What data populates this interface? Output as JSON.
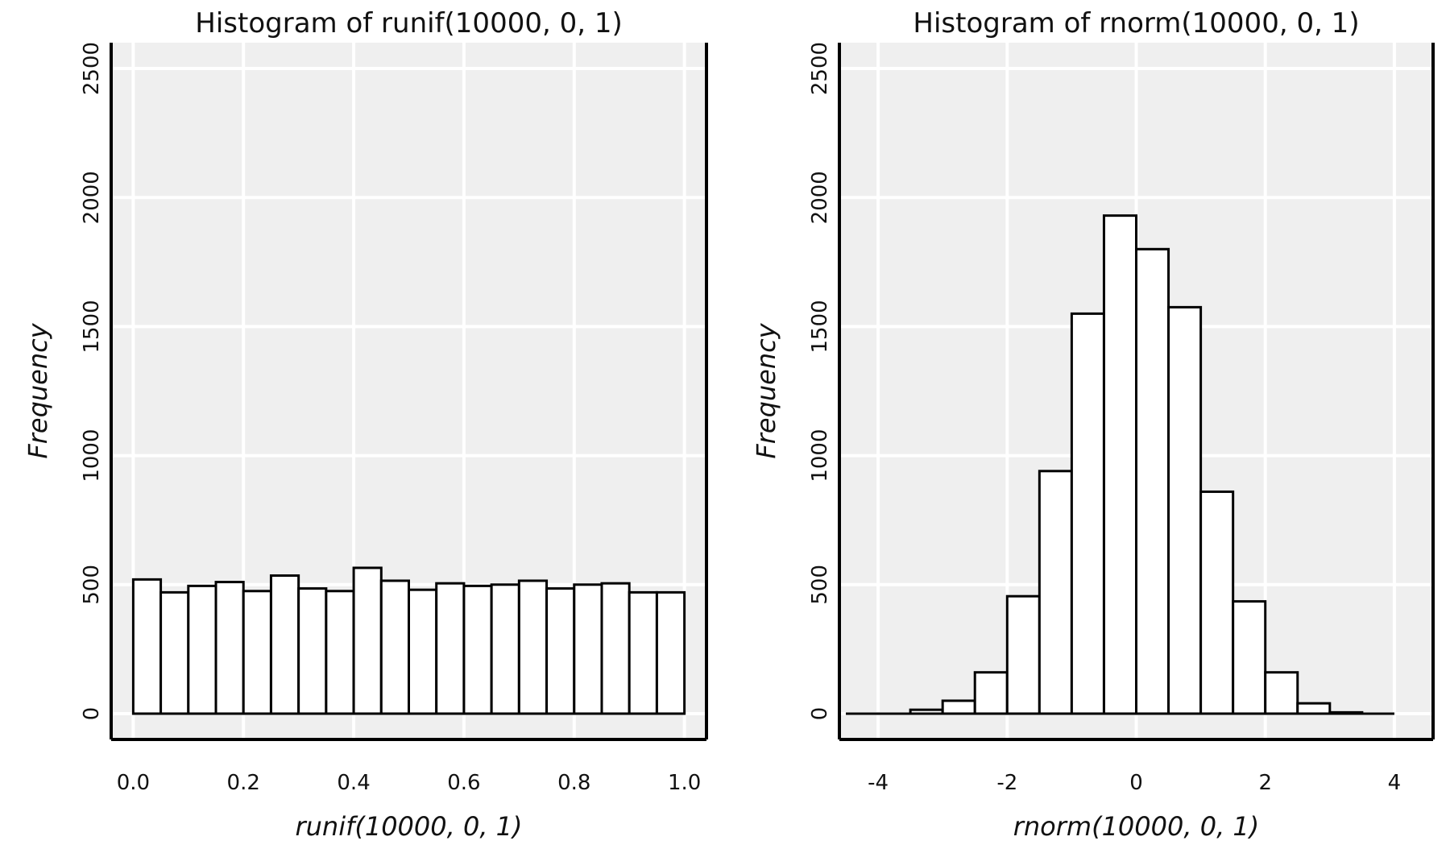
{
  "chart_data": [
    {
      "type": "bar",
      "title": "Histogram of runif(10000, 0, 1)",
      "xlabel": "runif(10000, 0, 1)",
      "ylabel": "Frequency",
      "xlim": [
        -0.04,
        1.04
      ],
      "ylim": [
        -100,
        2600
      ],
      "x_ticks": [
        {
          "value": 0.0,
          "label": "0.0"
        },
        {
          "value": 0.2,
          "label": "0.2"
        },
        {
          "value": 0.4,
          "label": "0.4"
        },
        {
          "value": 0.6,
          "label": "0.6"
        },
        {
          "value": 0.8,
          "label": "0.8"
        },
        {
          "value": 1.0,
          "label": "1.0"
        }
      ],
      "y_ticks": [
        {
          "value": 0,
          "label": "0"
        },
        {
          "value": 500,
          "label": "500"
        },
        {
          "value": 1000,
          "label": "1000"
        },
        {
          "value": 1500,
          "label": "1500"
        },
        {
          "value": 2000,
          "label": "2000"
        },
        {
          "value": 2500,
          "label": "2500"
        }
      ],
      "grid_x": [
        0.0,
        0.2,
        0.4,
        0.6,
        0.8,
        1.0
      ],
      "grid_y": [
        0,
        500,
        1000,
        1500,
        2000,
        2500
      ],
      "grid": true,
      "bins": [
        {
          "x0": 0.0,
          "x1": 0.05,
          "count": 520
        },
        {
          "x0": 0.05,
          "x1": 0.1,
          "count": 470
        },
        {
          "x0": 0.1,
          "x1": 0.15,
          "count": 495
        },
        {
          "x0": 0.15,
          "x1": 0.2,
          "count": 510
        },
        {
          "x0": 0.2,
          "x1": 0.25,
          "count": 475
        },
        {
          "x0": 0.25,
          "x1": 0.3,
          "count": 535
        },
        {
          "x0": 0.3,
          "x1": 0.35,
          "count": 485
        },
        {
          "x0": 0.35,
          "x1": 0.4,
          "count": 475
        },
        {
          "x0": 0.4,
          "x1": 0.45,
          "count": 565
        },
        {
          "x0": 0.45,
          "x1": 0.5,
          "count": 515
        },
        {
          "x0": 0.5,
          "x1": 0.55,
          "count": 480
        },
        {
          "x0": 0.55,
          "x1": 0.6,
          "count": 505
        },
        {
          "x0": 0.6,
          "x1": 0.65,
          "count": 495
        },
        {
          "x0": 0.65,
          "x1": 0.7,
          "count": 500
        },
        {
          "x0": 0.7,
          "x1": 0.75,
          "count": 515
        },
        {
          "x0": 0.75,
          "x1": 0.8,
          "count": 485
        },
        {
          "x0": 0.8,
          "x1": 0.85,
          "count": 500
        },
        {
          "x0": 0.85,
          "x1": 0.9,
          "count": 505
        },
        {
          "x0": 0.9,
          "x1": 0.95,
          "count": 470
        },
        {
          "x0": 0.95,
          "x1": 1.0,
          "count": 470
        }
      ]
    },
    {
      "type": "bar",
      "title": "Histogram of rnorm(10000, 0, 1)",
      "xlabel": "rnorm(10000, 0, 1)",
      "ylabel": "Frequency",
      "xlim": [
        -4.6,
        4.6
      ],
      "ylim": [
        -100,
        2600
      ],
      "x_ticks": [
        {
          "value": -4,
          "label": "-4"
        },
        {
          "value": -2,
          "label": "-2"
        },
        {
          "value": 0,
          "label": "0"
        },
        {
          "value": 2,
          "label": "2"
        },
        {
          "value": 4,
          "label": "4"
        }
      ],
      "y_ticks": [
        {
          "value": 0,
          "label": "0"
        },
        {
          "value": 500,
          "label": "500"
        },
        {
          "value": 1000,
          "label": "1000"
        },
        {
          "value": 1500,
          "label": "1500"
        },
        {
          "value": 2000,
          "label": "2000"
        },
        {
          "value": 2500,
          "label": "2500"
        }
      ],
      "grid_x": [
        -4,
        -2,
        0,
        2,
        4
      ],
      "grid_y": [
        0,
        500,
        1000,
        1500,
        2000,
        2500
      ],
      "grid": true,
      "bins": [
        {
          "x0": -4.5,
          "x1": -4.0,
          "count": 0
        },
        {
          "x0": -4.0,
          "x1": -3.5,
          "count": 0
        },
        {
          "x0": -3.5,
          "x1": -3.0,
          "count": 15
        },
        {
          "x0": -3.0,
          "x1": -2.5,
          "count": 50
        },
        {
          "x0": -2.5,
          "x1": -2.0,
          "count": 160
        },
        {
          "x0": -2.0,
          "x1": -1.5,
          "count": 455
        },
        {
          "x0": -1.5,
          "x1": -1.0,
          "count": 940
        },
        {
          "x0": -1.0,
          "x1": -0.5,
          "count": 1550
        },
        {
          "x0": -0.5,
          "x1": 0.0,
          "count": 1930
        },
        {
          "x0": 0.0,
          "x1": 0.5,
          "count": 1800
        },
        {
          "x0": 0.5,
          "x1": 1.0,
          "count": 1575
        },
        {
          "x0": 1.0,
          "x1": 1.5,
          "count": 860
        },
        {
          "x0": 1.5,
          "x1": 2.0,
          "count": 435
        },
        {
          "x0": 2.0,
          "x1": 2.5,
          "count": 160
        },
        {
          "x0": 2.5,
          "x1": 3.0,
          "count": 40
        },
        {
          "x0": 3.0,
          "x1": 3.5,
          "count": 5
        },
        {
          "x0": 3.5,
          "x1": 4.0,
          "count": 0
        }
      ]
    }
  ],
  "colors": {
    "panel_background": "#efefef",
    "grid": "#ffffff",
    "bar_fill": "#ffffff",
    "bar_stroke": "#000000",
    "axes": "#000000"
  }
}
